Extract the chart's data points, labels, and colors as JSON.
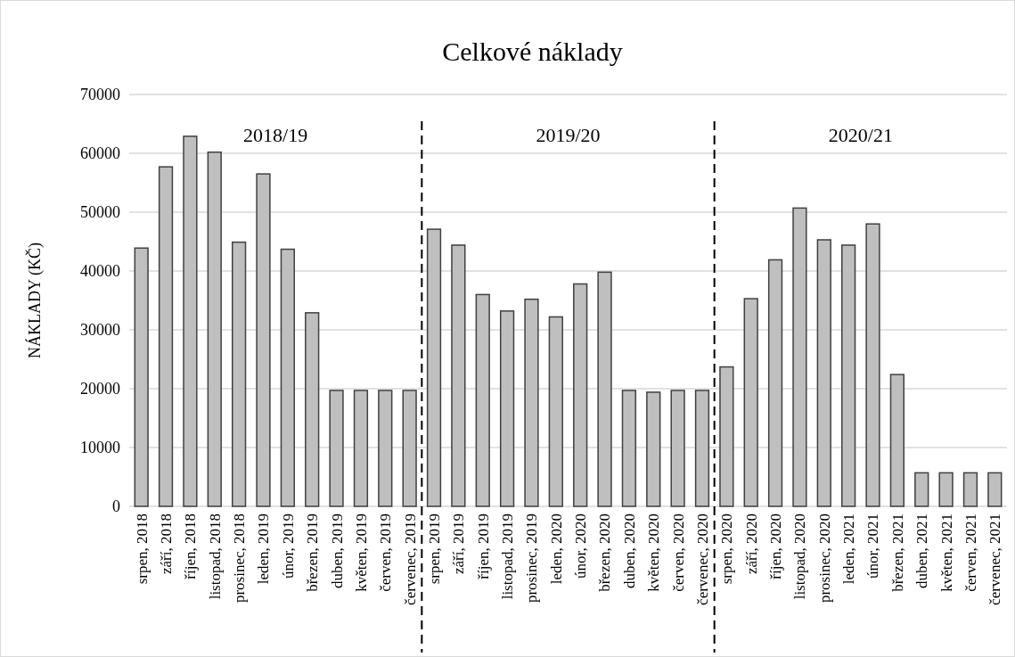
{
  "chart_data": {
    "type": "bar",
    "title": "Celkové náklady",
    "ylabel": "NÁKLADY (KČ)",
    "categories": [
      "srpen, 2018",
      "září, 2018",
      "říjen, 2018",
      "listopad, 2018",
      "prosinec, 2018",
      "leden, 2019",
      "únor, 2019",
      "březen, 2019",
      "duben, 2019",
      "květen, 2019",
      "červen, 2019",
      "červenec, 2019",
      "srpen, 2019",
      "září, 2019",
      "říjen, 2019",
      "listopad, 2019",
      "prosinec, 2019",
      "leden, 2020",
      "únor, 2020",
      "březen, 2020",
      "duben, 2020",
      "květen, 2020",
      "červen, 2020",
      "červenec, 2020",
      "srpen, 2020",
      "září, 2020",
      "říjen, 2020",
      "listopad, 2020",
      "prosinec, 2020",
      "leden, 2021",
      "únor, 2021",
      "březen, 2021",
      "duben, 2021",
      "květen, 2021",
      "červen, 2021",
      "červenec, 2021"
    ],
    "values": [
      43900,
      57700,
      62900,
      60200,
      44900,
      56500,
      43700,
      32900,
      19700,
      19700,
      19700,
      19700,
      47100,
      44400,
      36000,
      33200,
      35200,
      32200,
      37800,
      39800,
      19700,
      19400,
      19700,
      19700,
      23700,
      35300,
      41900,
      50700,
      45300,
      44400,
      48000,
      22400,
      5700,
      5700,
      5700,
      5700
    ],
    "color": "#bfbfbf",
    "ylim": [
      0,
      70000
    ],
    "yticks": [
      0,
      10000,
      20000,
      30000,
      40000,
      50000,
      60000,
      70000
    ],
    "grid": "y",
    "annotations": [
      "2018/19",
      "2019/20",
      "2020/21"
    ]
  }
}
